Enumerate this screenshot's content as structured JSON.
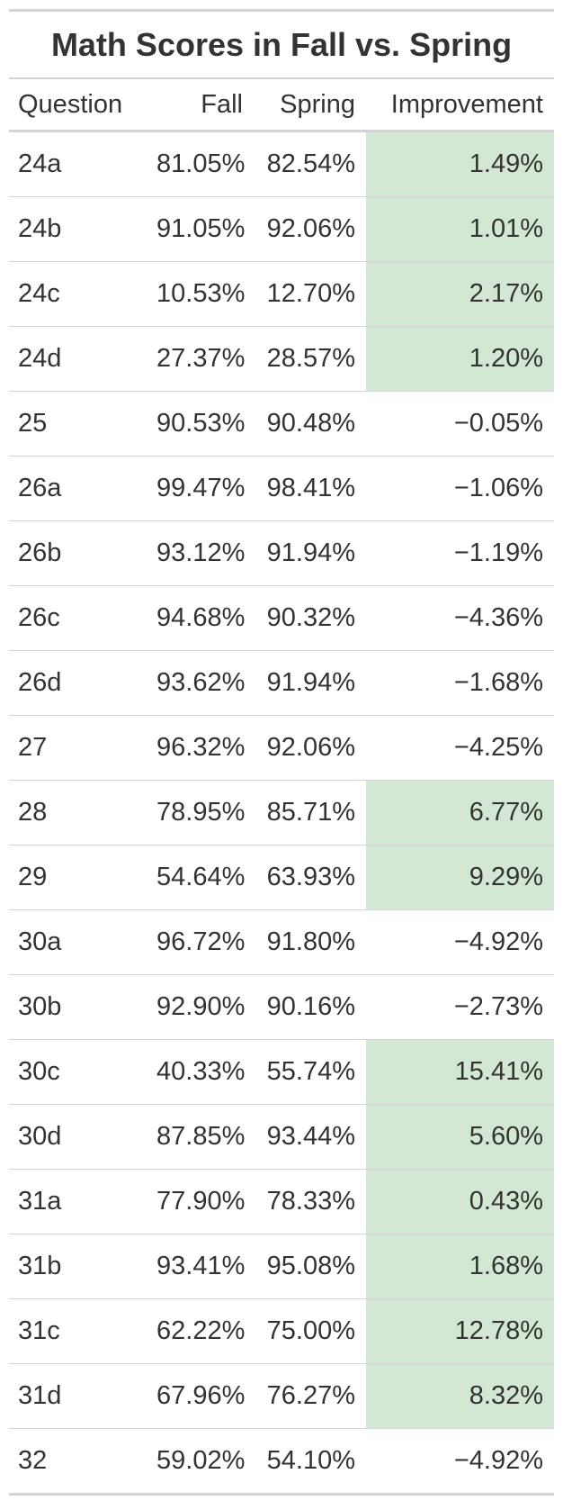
{
  "chart_data": {
    "type": "table",
    "title": "Math Scores in Fall vs. Spring",
    "columns": [
      "Question",
      "Fall",
      "Spring",
      "Improvement"
    ],
    "highlight_color": "#d2e8d2",
    "rows": [
      {
        "question": "24a",
        "fall": "81.05%",
        "spring": "82.54%",
        "improvement": "1.49%",
        "improvement_value": 1.49
      },
      {
        "question": "24b",
        "fall": "91.05%",
        "spring": "92.06%",
        "improvement": "1.01%",
        "improvement_value": 1.01
      },
      {
        "question": "24c",
        "fall": "10.53%",
        "spring": "12.70%",
        "improvement": "2.17%",
        "improvement_value": 2.17
      },
      {
        "question": "24d",
        "fall": "27.37%",
        "spring": "28.57%",
        "improvement": "1.20%",
        "improvement_value": 1.2
      },
      {
        "question": "25",
        "fall": "90.53%",
        "spring": "90.48%",
        "improvement": "−0.05%",
        "improvement_value": -0.05
      },
      {
        "question": "26a",
        "fall": "99.47%",
        "spring": "98.41%",
        "improvement": "−1.06%",
        "improvement_value": -1.06
      },
      {
        "question": "26b",
        "fall": "93.12%",
        "spring": "91.94%",
        "improvement": "−1.19%",
        "improvement_value": -1.19
      },
      {
        "question": "26c",
        "fall": "94.68%",
        "spring": "90.32%",
        "improvement": "−4.36%",
        "improvement_value": -4.36
      },
      {
        "question": "26d",
        "fall": "93.62%",
        "spring": "91.94%",
        "improvement": "−1.68%",
        "improvement_value": -1.68
      },
      {
        "question": "27",
        "fall": "96.32%",
        "spring": "92.06%",
        "improvement": "−4.25%",
        "improvement_value": -4.25
      },
      {
        "question": "28",
        "fall": "78.95%",
        "spring": "85.71%",
        "improvement": "6.77%",
        "improvement_value": 6.77
      },
      {
        "question": "29",
        "fall": "54.64%",
        "spring": "63.93%",
        "improvement": "9.29%",
        "improvement_value": 9.29
      },
      {
        "question": "30a",
        "fall": "96.72%",
        "spring": "91.80%",
        "improvement": "−4.92%",
        "improvement_value": -4.92
      },
      {
        "question": "30b",
        "fall": "92.90%",
        "spring": "90.16%",
        "improvement": "−2.73%",
        "improvement_value": -2.73
      },
      {
        "question": "30c",
        "fall": "40.33%",
        "spring": "55.74%",
        "improvement": "15.41%",
        "improvement_value": 15.41
      },
      {
        "question": "30d",
        "fall": "87.85%",
        "spring": "93.44%",
        "improvement": "5.60%",
        "improvement_value": 5.6
      },
      {
        "question": "31a",
        "fall": "77.90%",
        "spring": "78.33%",
        "improvement": "0.43%",
        "improvement_value": 0.43
      },
      {
        "question": "31b",
        "fall": "93.41%",
        "spring": "95.08%",
        "improvement": "1.68%",
        "improvement_value": 1.68
      },
      {
        "question": "31c",
        "fall": "62.22%",
        "spring": "75.00%",
        "improvement": "12.78%",
        "improvement_value": 12.78
      },
      {
        "question": "31d",
        "fall": "67.96%",
        "spring": "76.27%",
        "improvement": "8.32%",
        "improvement_value": 8.32
      },
      {
        "question": "32",
        "fall": "59.02%",
        "spring": "54.10%",
        "improvement": "−4.92%",
        "improvement_value": -4.92
      }
    ]
  }
}
